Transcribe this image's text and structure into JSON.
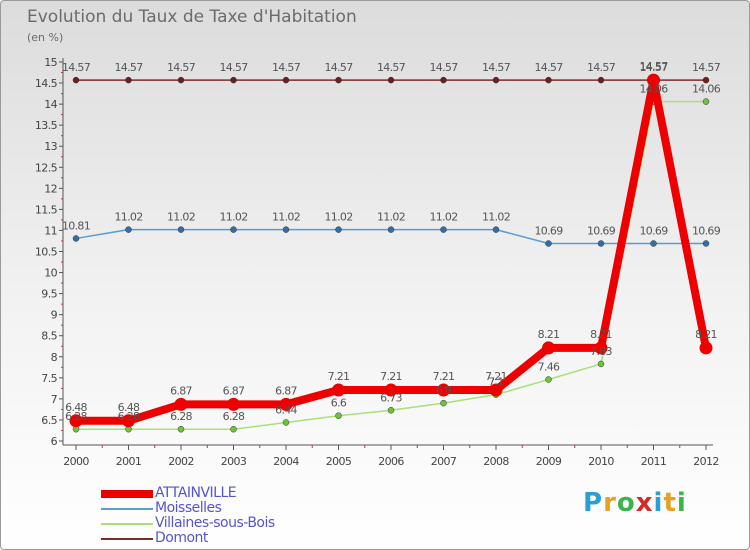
{
  "header": {
    "title": "Evolution du Taux de Taxe d'Habitation",
    "subtitle": "(en %)"
  },
  "logo": {
    "text": "Proxiti",
    "letters": [
      "P",
      "r",
      "o",
      "x",
      "i",
      "t",
      "i"
    ],
    "colors": [
      "#2a9fd6",
      "#e8a020",
      "#3cb44b",
      "#d62828",
      "#2a9fd6",
      "#e8a020",
      "#3cb44b"
    ]
  },
  "chart_data": {
    "type": "line",
    "title": "Evolution du Taux de Taxe d'Habitation",
    "ylabel": "(en %)",
    "xlabel": "",
    "ylim": [
      6,
      15
    ],
    "yticks": [
      "6",
      "6.5",
      "7",
      "7.5",
      "8",
      "8.5",
      "9",
      "9.5",
      "10",
      "10.5",
      "11",
      "11.5",
      "12",
      "12.5",
      "13",
      "13.5",
      "14",
      "14.5",
      "15"
    ],
    "categories": [
      "2000",
      "2001",
      "2002",
      "2003",
      "2004",
      "2005",
      "2006",
      "2007",
      "2008",
      "2009",
      "2010",
      "2011",
      "2012"
    ],
    "grid": false,
    "legend_position": "bottom-left",
    "series": [
      {
        "name": "Domont",
        "color": "#7a2d2d",
        "marker_color": "#6b1f1f",
        "values": [
          14.57,
          14.57,
          14.57,
          14.57,
          14.57,
          14.57,
          14.57,
          14.57,
          14.57,
          14.57,
          14.57,
          14.57,
          14.57
        ],
        "labels": [
          "14.57",
          "14.57",
          "14.57",
          "14.57",
          "14.57",
          "14.57",
          "14.57",
          "14.57",
          "14.57",
          "14.57",
          "14.57",
          "14.57",
          "14.57"
        ]
      },
      {
        "name": "Moisselles",
        "color": "#5a9bd4",
        "marker_color": "#2f6fad",
        "values": [
          10.81,
          11.02,
          11.02,
          11.02,
          11.02,
          11.02,
          11.02,
          11.02,
          11.02,
          10.69,
          10.69,
          10.69,
          10.69
        ],
        "labels": [
          "10.81",
          "11.02",
          "11.02",
          "11.02",
          "11.02",
          "11.02",
          "11.02",
          "11.02",
          "11.02",
          "10.69",
          "10.69",
          "10.69",
          "10.69"
        ]
      },
      {
        "name": "Villaines-sous-Bois",
        "color": "#a8e07a",
        "marker_color": "#6cc43a",
        "values": [
          6.28,
          6.28,
          6.28,
          6.28,
          6.44,
          6.6,
          6.73,
          6.9,
          7.1,
          7.46,
          7.83,
          14.06,
          14.06
        ],
        "labels": [
          "6.28",
          "6.28",
          "6.28",
          "6.28",
          "6.44",
          "6.6",
          "6.73",
          "6.9",
          "7.1",
          "7.46",
          "7.83",
          "14.06",
          "14.06"
        ]
      },
      {
        "name": "ATTAINVILLE",
        "color": "#ee0000",
        "marker_color": "#ee0000",
        "values": [
          6.48,
          6.48,
          6.87,
          6.87,
          6.87,
          7.21,
          7.21,
          7.21,
          7.21,
          8.21,
          8.21,
          14.57,
          8.21
        ],
        "labels": [
          "6.48",
          "6.48",
          "6.87",
          "6.87",
          "6.87",
          "7.21",
          "7.21",
          "7.21",
          "7.21",
          "8.21",
          "8.21",
          "14.57",
          "8.21"
        ]
      }
    ]
  }
}
